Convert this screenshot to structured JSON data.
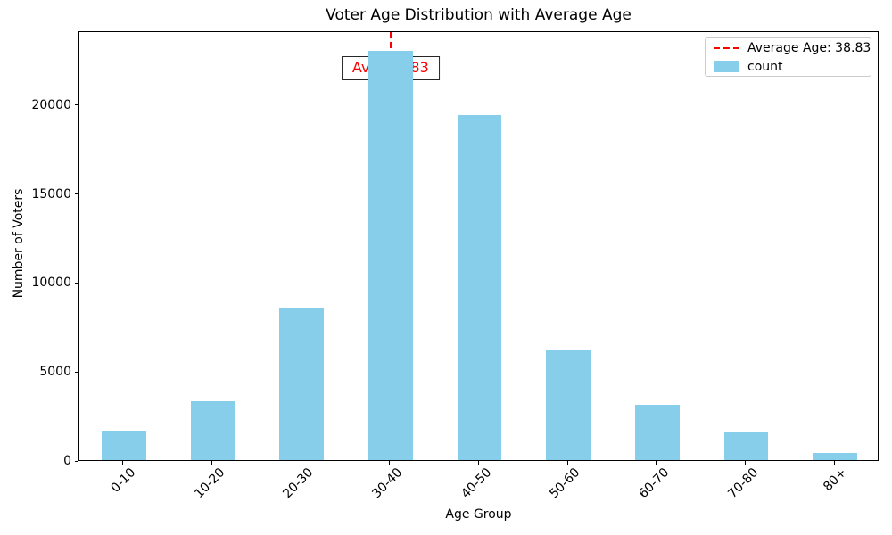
{
  "chart_data": {
    "type": "bar",
    "title": "Voter Age Distribution with Average Age",
    "xlabel": "Age Group",
    "ylabel": "Number of Voters",
    "categories": [
      "0-10",
      "10-20",
      "20-30",
      "30-40",
      "40-50",
      "50-60",
      "60-70",
      "70-80",
      "80+"
    ],
    "series_name": "count",
    "values": [
      1670,
      3300,
      8570,
      23000,
      19400,
      6150,
      3090,
      1580,
      390
    ],
    "ylim": [
      0,
      24150
    ],
    "yticks": [
      0,
      5000,
      10000,
      15000,
      20000
    ],
    "bar_color": "#87CEEB",
    "bar_width_fraction": 0.5,
    "grid": false,
    "legend_position": "upper right",
    "average_line": {
      "average_age": 38.83,
      "at_category": "30-40",
      "category_index": 3,
      "color": "#ff0000",
      "style": "dashed",
      "annotation": "Avg: 38.83",
      "annotation_color": "#ff0000"
    }
  },
  "legend": {
    "items": [
      {
        "label": "Average Age: 38.83",
        "marker": "dashed-line",
        "color": "#ff0000"
      },
      {
        "label": "count",
        "marker": "patch",
        "color": "#87CEEB"
      }
    ]
  }
}
